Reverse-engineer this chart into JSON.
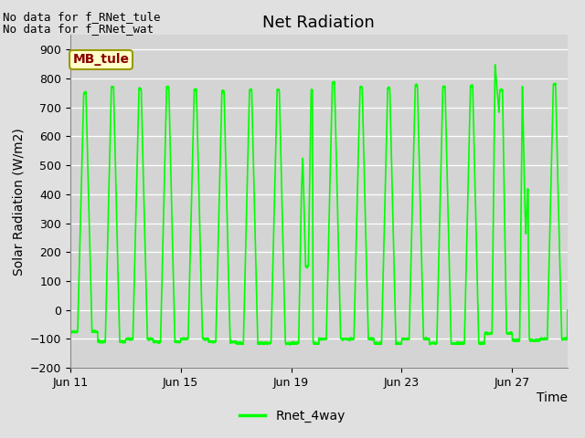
{
  "title": "Net Radiation",
  "xlabel": "Time",
  "ylabel": "Solar Radiation (W/m2)",
  "ylim": [
    -200,
    950
  ],
  "yticks": [
    -200,
    -100,
    0,
    100,
    200,
    300,
    400,
    500,
    600,
    700,
    800,
    900
  ],
  "line_color": "#00FF00",
  "line_width": 1.2,
  "fig_bg_color": "#E0E0E0",
  "plot_bg_color": "#D4D4D4",
  "legend_label": "Rnet_4way",
  "legend_line_color": "#00FF00",
  "top_left_text_line1": "No data for f_RNet_tule",
  "top_left_text_line2": "No data for f_RNet_wat",
  "box_label": "MB_tule",
  "box_text_color": "#8B0000",
  "box_bg_color": "#FFFFCC",
  "box_border_color": "#999900",
  "xtick_labels": [
    "Jun 11",
    "Jun 15",
    "Jun 19",
    "Jun 23",
    "Jun 27"
  ],
  "title_fontsize": 13,
  "axis_fontsize": 10,
  "tick_fontsize": 9,
  "text_fontsize": 9
}
